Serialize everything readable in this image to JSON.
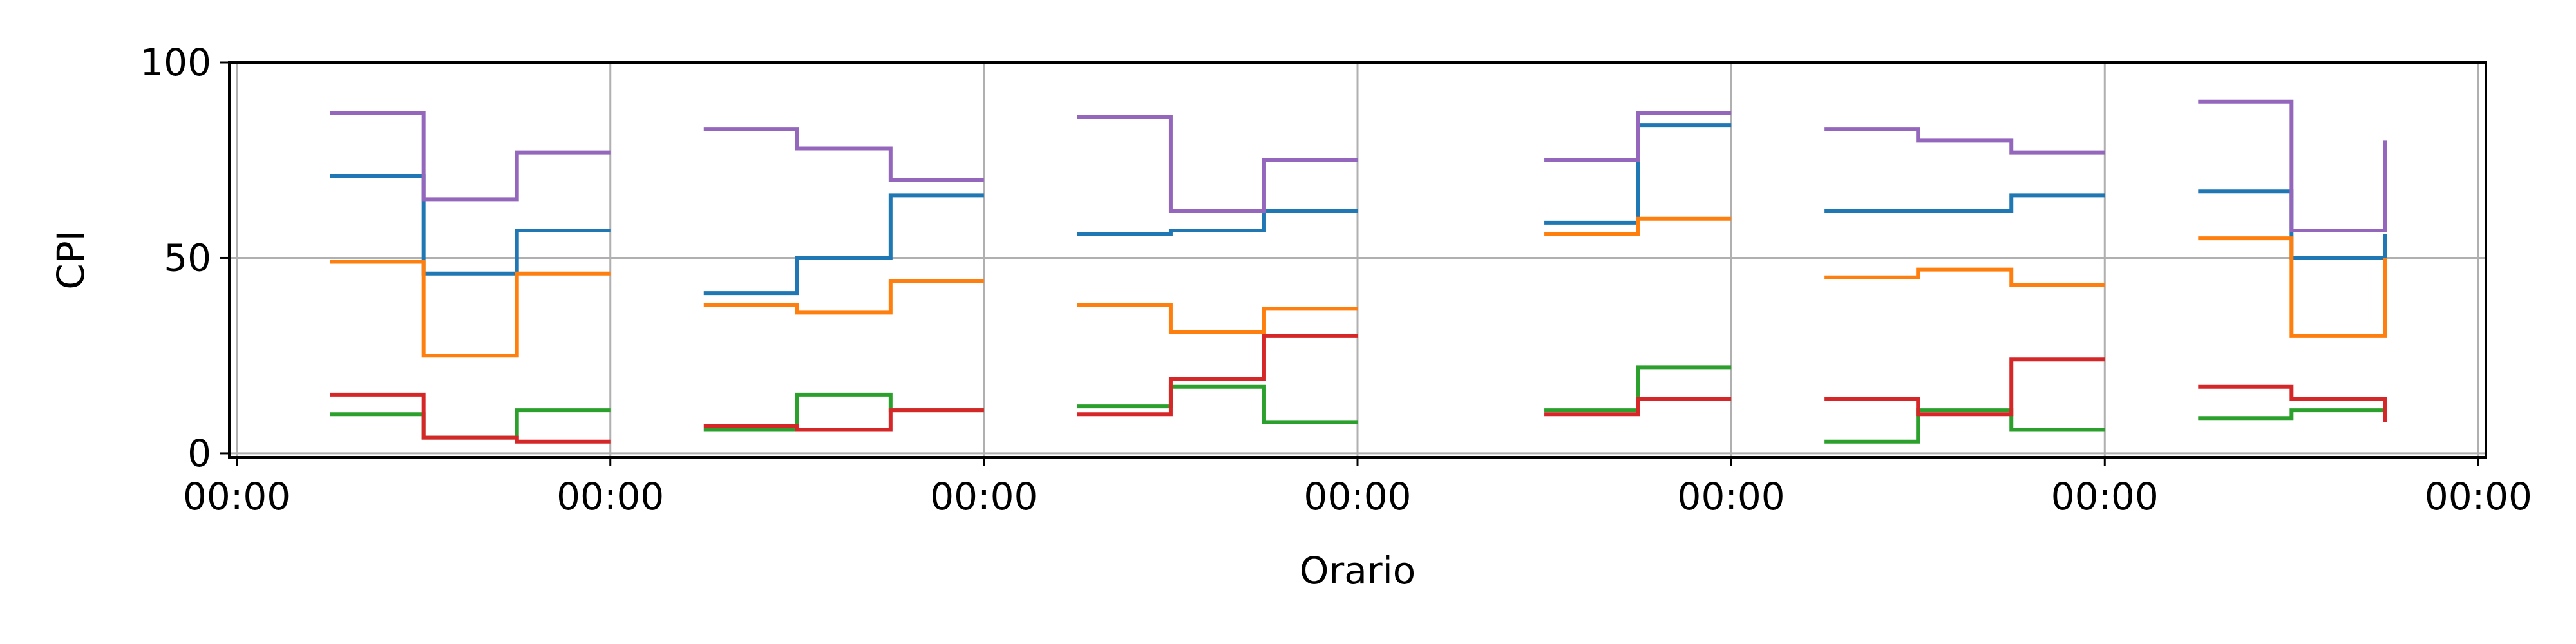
{
  "chart_data": {
    "type": "line",
    "title": "",
    "xlabel": "Orario",
    "ylabel": "CPI",
    "ylim": [
      -1,
      100
    ],
    "y_ticks": [
      0,
      50,
      100
    ],
    "x_tick_labels": [
      "00:00",
      "00:00",
      "00:00",
      "00:00",
      "00:00",
      "00:00",
      "00:00"
    ],
    "grid": true,
    "step": "post",
    "x_units": "intervals of the time axis; gridline at each 00:00 tick (0..6)",
    "xlim": [
      -0.02,
      6.02
    ],
    "colors": {
      "blue": "#1f77b4",
      "orange": "#ff7f0e",
      "green": "#2ca02c",
      "red": "#d62728",
      "purple": "#9467bd"
    },
    "groups": [
      {
        "x": [
          0.25,
          0.5,
          0.75,
          1.0
        ],
        "series": [
          {
            "color": "blue",
            "values": [
              71,
              46,
              57,
              57
            ]
          },
          {
            "color": "orange",
            "values": [
              49,
              25,
              46,
              46
            ]
          },
          {
            "color": "green",
            "values": [
              10,
              4,
              11,
              11
            ]
          },
          {
            "color": "red",
            "values": [
              15,
              4,
              3,
              3
            ]
          },
          {
            "color": "purple",
            "values": [
              87,
              65,
              77,
              77
            ]
          }
        ]
      },
      {
        "x": [
          1.25,
          1.5,
          1.75,
          2.0
        ],
        "series": [
          {
            "color": "blue",
            "values": [
              41,
              50,
              66,
              66
            ]
          },
          {
            "color": "orange",
            "values": [
              38,
              36,
              44,
              44
            ]
          },
          {
            "color": "green",
            "values": [
              6,
              15,
              11,
              11
            ]
          },
          {
            "color": "red",
            "values": [
              7,
              6,
              11,
              11
            ]
          },
          {
            "color": "purple",
            "values": [
              83,
              78,
              70,
              70
            ]
          }
        ]
      },
      {
        "x": [
          2.25,
          2.5,
          2.75,
          3.0
        ],
        "series": [
          {
            "color": "blue",
            "values": [
              56,
              57,
              62,
              62
            ]
          },
          {
            "color": "orange",
            "values": [
              38,
              31,
              37,
              37
            ]
          },
          {
            "color": "green",
            "values": [
              12,
              17,
              8,
              8
            ]
          },
          {
            "color": "red",
            "values": [
              10,
              19,
              30,
              30
            ]
          },
          {
            "color": "purple",
            "values": [
              86,
              62,
              75,
              75
            ]
          }
        ]
      },
      {
        "x": [
          3.5,
          3.75,
          4.0
        ],
        "series": [
          {
            "color": "blue",
            "values": [
              59,
              84,
              84
            ]
          },
          {
            "color": "orange",
            "values": [
              56,
              60,
              60
            ]
          },
          {
            "color": "green",
            "values": [
              11,
              22,
              22
            ]
          },
          {
            "color": "red",
            "values": [
              10,
              14,
              14
            ]
          },
          {
            "color": "purple",
            "values": [
              75,
              87,
              87
            ]
          }
        ]
      },
      {
        "x": [
          4.25,
          4.5,
          4.75,
          5.0
        ],
        "series": [
          {
            "color": "blue",
            "values": [
              62,
              62,
              66,
              66
            ]
          },
          {
            "color": "orange",
            "values": [
              45,
              47,
              43,
              43
            ]
          },
          {
            "color": "green",
            "values": [
              3,
              11,
              6,
              6
            ]
          },
          {
            "color": "red",
            "values": [
              14,
              10,
              24,
              24
            ]
          },
          {
            "color": "purple",
            "values": [
              83,
              80,
              77,
              77
            ]
          }
        ]
      },
      {
        "x": [
          5.25,
          5.5,
          5.75
        ],
        "series": [
          {
            "color": "blue",
            "values": [
              67,
              50,
              56
            ]
          },
          {
            "color": "orange",
            "values": [
              55,
              30,
              50
            ]
          },
          {
            "color": "green",
            "values": [
              9,
              11,
              11
            ]
          },
          {
            "color": "red",
            "values": [
              17,
              14,
              8
            ]
          },
          {
            "color": "purple",
            "values": [
              90,
              57,
              80
            ]
          }
        ]
      }
    ]
  }
}
